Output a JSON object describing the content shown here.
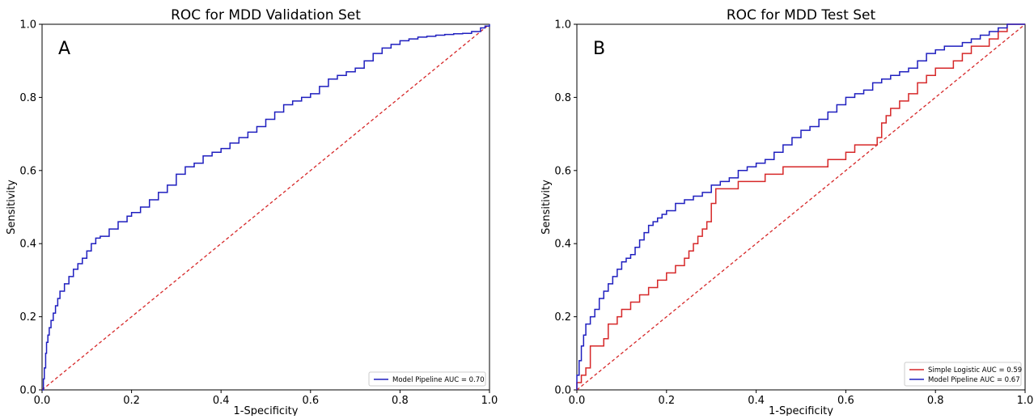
{
  "chart_data": [
    {
      "type": "line",
      "title": "ROC for MDD Validation Set",
      "panel_label": "A",
      "xlabel": "1-Specificity",
      "ylabel": "Sensitivity",
      "xlim": [
        0,
        1
      ],
      "ylim": [
        0,
        1
      ],
      "xticks": [
        "0.0",
        "0.2",
        "0.4",
        "0.6",
        "0.8",
        "1.0"
      ],
      "yticks": [
        "0.0",
        "0.2",
        "0.4",
        "0.6",
        "0.8",
        "1.0"
      ],
      "grid": false,
      "legend_position": "lower-right",
      "series": [
        {
          "name": "Model Pipeline AUC = 0.70",
          "color": "#1f1fbf",
          "style": "step",
          "x": [
            0.0,
            0.003,
            0.005,
            0.008,
            0.01,
            0.013,
            0.016,
            0.02,
            0.025,
            0.03,
            0.035,
            0.04,
            0.05,
            0.06,
            0.07,
            0.08,
            0.09,
            0.1,
            0.11,
            0.12,
            0.13,
            0.15,
            0.17,
            0.19,
            0.2,
            0.22,
            0.24,
            0.26,
            0.28,
            0.3,
            0.32,
            0.34,
            0.36,
            0.38,
            0.4,
            0.42,
            0.44,
            0.46,
            0.48,
            0.5,
            0.52,
            0.54,
            0.56,
            0.58,
            0.6,
            0.62,
            0.64,
            0.66,
            0.68,
            0.7,
            0.72,
            0.74,
            0.76,
            0.78,
            0.8,
            0.82,
            0.84,
            0.86,
            0.88,
            0.9,
            0.92,
            0.94,
            0.96,
            0.98,
            0.99,
            1.0
          ],
          "y": [
            0.0,
            0.03,
            0.06,
            0.1,
            0.13,
            0.15,
            0.17,
            0.19,
            0.21,
            0.23,
            0.25,
            0.27,
            0.29,
            0.31,
            0.33,
            0.345,
            0.36,
            0.38,
            0.4,
            0.415,
            0.42,
            0.44,
            0.46,
            0.475,
            0.485,
            0.5,
            0.52,
            0.54,
            0.56,
            0.59,
            0.61,
            0.62,
            0.64,
            0.65,
            0.66,
            0.675,
            0.69,
            0.705,
            0.72,
            0.74,
            0.76,
            0.78,
            0.79,
            0.8,
            0.81,
            0.83,
            0.85,
            0.86,
            0.87,
            0.88,
            0.9,
            0.92,
            0.935,
            0.945,
            0.955,
            0.96,
            0.965,
            0.967,
            0.97,
            0.972,
            0.974,
            0.975,
            0.98,
            0.99,
            0.995,
            1.0
          ]
        },
        {
          "name": "",
          "color": "#d62728",
          "style": "dashed",
          "x": [
            0,
            1
          ],
          "y": [
            0,
            1
          ]
        }
      ]
    },
    {
      "type": "line",
      "title": "ROC for MDD Test Set",
      "panel_label": "B",
      "xlabel": "1-Specificity",
      "ylabel": "Sensitivity",
      "xlim": [
        0,
        1
      ],
      "ylim": [
        0,
        1
      ],
      "xticks": [
        "0.0",
        "0.2",
        "0.4",
        "0.6",
        "0.8",
        "1.0"
      ],
      "yticks": [
        "0.0",
        "0.2",
        "0.4",
        "0.6",
        "0.8",
        "1.0"
      ],
      "grid": false,
      "legend_position": "lower-right",
      "series": [
        {
          "name": "Simple Logistic AUC = 0.59",
          "color": "#d62728",
          "style": "step",
          "x": [
            0.0,
            0.01,
            0.02,
            0.03,
            0.06,
            0.07,
            0.09,
            0.1,
            0.12,
            0.14,
            0.16,
            0.18,
            0.2,
            0.22,
            0.24,
            0.25,
            0.26,
            0.27,
            0.28,
            0.29,
            0.3,
            0.31,
            0.32,
            0.36,
            0.42,
            0.46,
            0.52,
            0.56,
            0.6,
            0.62,
            0.66,
            0.67,
            0.68,
            0.69,
            0.7,
            0.72,
            0.74,
            0.76,
            0.78,
            0.8,
            0.84,
            0.86,
            0.88,
            0.92,
            0.94,
            0.96,
            0.98,
            1.0
          ],
          "y": [
            0.02,
            0.04,
            0.06,
            0.12,
            0.14,
            0.18,
            0.2,
            0.22,
            0.24,
            0.26,
            0.28,
            0.3,
            0.32,
            0.34,
            0.36,
            0.38,
            0.4,
            0.42,
            0.44,
            0.46,
            0.51,
            0.55,
            0.55,
            0.57,
            0.59,
            0.61,
            0.61,
            0.63,
            0.65,
            0.67,
            0.67,
            0.69,
            0.73,
            0.75,
            0.77,
            0.79,
            0.81,
            0.84,
            0.86,
            0.88,
            0.9,
            0.92,
            0.94,
            0.96,
            0.98,
            1.0,
            1.0,
            1.0
          ]
        },
        {
          "name": "Model Pipeline AUC = 0.67",
          "color": "#1f1fbf",
          "style": "step",
          "x": [
            0.0,
            0.005,
            0.01,
            0.015,
            0.02,
            0.03,
            0.04,
            0.05,
            0.06,
            0.07,
            0.08,
            0.09,
            0.1,
            0.11,
            0.12,
            0.13,
            0.14,
            0.15,
            0.16,
            0.17,
            0.18,
            0.19,
            0.2,
            0.22,
            0.24,
            0.26,
            0.28,
            0.3,
            0.32,
            0.34,
            0.36,
            0.38,
            0.4,
            0.42,
            0.44,
            0.46,
            0.48,
            0.5,
            0.52,
            0.54,
            0.56,
            0.58,
            0.6,
            0.62,
            0.64,
            0.66,
            0.68,
            0.7,
            0.72,
            0.74,
            0.76,
            0.78,
            0.8,
            0.82,
            0.84,
            0.86,
            0.88,
            0.9,
            0.92,
            0.94,
            0.96,
            0.98,
            1.0
          ],
          "y": [
            0.04,
            0.08,
            0.12,
            0.15,
            0.18,
            0.2,
            0.22,
            0.25,
            0.27,
            0.29,
            0.31,
            0.33,
            0.35,
            0.36,
            0.37,
            0.39,
            0.41,
            0.43,
            0.45,
            0.46,
            0.47,
            0.48,
            0.49,
            0.51,
            0.52,
            0.53,
            0.54,
            0.56,
            0.57,
            0.58,
            0.6,
            0.61,
            0.62,
            0.63,
            0.65,
            0.67,
            0.69,
            0.71,
            0.72,
            0.74,
            0.76,
            0.78,
            0.8,
            0.81,
            0.82,
            0.84,
            0.85,
            0.86,
            0.87,
            0.88,
            0.9,
            0.92,
            0.93,
            0.94,
            0.94,
            0.95,
            0.96,
            0.97,
            0.98,
            0.99,
            1.0,
            1.0,
            1.0
          ]
        },
        {
          "name": "",
          "color": "#d62728",
          "style": "dashed",
          "x": [
            0,
            1
          ],
          "y": [
            0,
            1
          ]
        }
      ]
    }
  ]
}
